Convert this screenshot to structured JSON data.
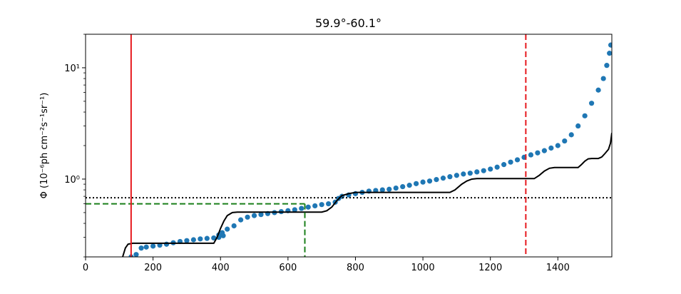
{
  "chart_data": {
    "type": "scatter",
    "title": "59.9°-60.1°",
    "xlabel": "",
    "ylabel": "Φ (10⁻⁶ph cm⁻²s⁻¹sr⁻¹)",
    "xlim": [
      0,
      1560
    ],
    "ylim": [
      0.2,
      20
    ],
    "yscale": "log",
    "x_ticks": [
      0,
      200,
      400,
      600,
      800,
      1000,
      1200,
      1400
    ],
    "x_tick_labels": [
      "0",
      "200",
      "400",
      "600",
      "800",
      "1000",
      "1200",
      "1400"
    ],
    "y_ticks": [
      1,
      10
    ],
    "y_tick_labels": [
      "10⁰",
      "10¹"
    ],
    "grid": false,
    "scatter": {
      "color": "#1f77b4",
      "points": [
        [
          135,
          0.2
        ],
        [
          150,
          0.21
        ],
        [
          165,
          0.24
        ],
        [
          180,
          0.245
        ],
        [
          200,
          0.25
        ],
        [
          220,
          0.255
        ],
        [
          240,
          0.26
        ],
        [
          260,
          0.268
        ],
        [
          280,
          0.275
        ],
        [
          300,
          0.28
        ],
        [
          320,
          0.285
        ],
        [
          340,
          0.29
        ],
        [
          360,
          0.293
        ],
        [
          380,
          0.296
        ],
        [
          395,
          0.3
        ],
        [
          408,
          0.31
        ],
        [
          395,
          0.315
        ],
        [
          405,
          0.33
        ],
        [
          420,
          0.355
        ],
        [
          440,
          0.38
        ],
        [
          460,
          0.43
        ],
        [
          480,
          0.455
        ],
        [
          500,
          0.47
        ],
        [
          520,
          0.48
        ],
        [
          540,
          0.49
        ],
        [
          560,
          0.5
        ],
        [
          580,
          0.51
        ],
        [
          600,
          0.52
        ],
        [
          620,
          0.53
        ],
        [
          640,
          0.545
        ],
        [
          660,
          0.56
        ],
        [
          680,
          0.575
        ],
        [
          700,
          0.59
        ],
        [
          720,
          0.6
        ],
        [
          740,
          0.62
        ],
        [
          750,
          0.67
        ],
        [
          760,
          0.7
        ],
        [
          780,
          0.72
        ],
        [
          800,
          0.74
        ],
        [
          820,
          0.76
        ],
        [
          840,
          0.78
        ],
        [
          860,
          0.79
        ],
        [
          880,
          0.8
        ],
        [
          900,
          0.81
        ],
        [
          920,
          0.83
        ],
        [
          940,
          0.855
        ],
        [
          960,
          0.88
        ],
        [
          980,
          0.91
        ],
        [
          1000,
          0.94
        ],
        [
          1020,
          0.96
        ],
        [
          1040,
          0.99
        ],
        [
          1060,
          1.02
        ],
        [
          1080,
          1.05
        ],
        [
          1100,
          1.08
        ],
        [
          1120,
          1.11
        ],
        [
          1140,
          1.13
        ],
        [
          1160,
          1.16
        ],
        [
          1180,
          1.19
        ],
        [
          1200,
          1.23
        ],
        [
          1220,
          1.28
        ],
        [
          1240,
          1.35
        ],
        [
          1260,
          1.42
        ],
        [
          1280,
          1.49
        ],
        [
          1300,
          1.57
        ],
        [
          1320,
          1.65
        ],
        [
          1340,
          1.72
        ],
        [
          1360,
          1.8
        ],
        [
          1380,
          1.9
        ],
        [
          1400,
          2.0
        ],
        [
          1420,
          2.2
        ],
        [
          1440,
          2.5
        ],
        [
          1460,
          3.0
        ],
        [
          1480,
          3.7
        ],
        [
          1500,
          4.8
        ],
        [
          1520,
          6.3
        ],
        [
          1535,
          8.0
        ],
        [
          1545,
          10.5
        ],
        [
          1553,
          13.5
        ],
        [
          1557,
          16.0
        ]
      ]
    },
    "lines": [
      {
        "name": "",
        "color": "#000000",
        "style": "solid",
        "points": [
          [
            110,
            0.2
          ],
          [
            118,
            0.24
          ],
          [
            126,
            0.26
          ],
          [
            140,
            0.265
          ],
          [
            380,
            0.265
          ],
          [
            390,
            0.3
          ],
          [
            400,
            0.36
          ],
          [
            410,
            0.42
          ],
          [
            420,
            0.47
          ],
          [
            435,
            0.5
          ],
          [
            450,
            0.505
          ],
          [
            700,
            0.505
          ],
          [
            715,
            0.52
          ],
          [
            730,
            0.56
          ],
          [
            745,
            0.64
          ],
          [
            760,
            0.71
          ],
          [
            780,
            0.74
          ],
          [
            800,
            0.76
          ],
          [
            1080,
            0.76
          ],
          [
            1095,
            0.8
          ],
          [
            1115,
            0.9
          ],
          [
            1130,
            0.96
          ],
          [
            1145,
            1.0
          ],
          [
            1160,
            1.01
          ],
          [
            1330,
            1.01
          ],
          [
            1345,
            1.08
          ],
          [
            1360,
            1.18
          ],
          [
            1375,
            1.25
          ],
          [
            1390,
            1.27
          ],
          [
            1460,
            1.27
          ],
          [
            1470,
            1.35
          ],
          [
            1480,
            1.45
          ],
          [
            1490,
            1.52
          ],
          [
            1500,
            1.53
          ],
          [
            1520,
            1.53
          ],
          [
            1530,
            1.58
          ],
          [
            1540,
            1.7
          ],
          [
            1550,
            1.85
          ],
          [
            1556,
            2.1
          ],
          [
            1560,
            2.6
          ]
        ]
      }
    ],
    "vertical_lines": [
      {
        "x": 135,
        "color": "#e6191e",
        "style": "solid"
      },
      {
        "x": 1305,
        "color": "#e6191e",
        "style": "dashed"
      }
    ],
    "horizontal_lines": [
      {
        "y": 0.68,
        "color": "#000000",
        "style": "dotted"
      }
    ],
    "marker_lines": {
      "color": "#1a7f1a",
      "style": "dashed",
      "x": 650,
      "y": 0.6
    }
  }
}
